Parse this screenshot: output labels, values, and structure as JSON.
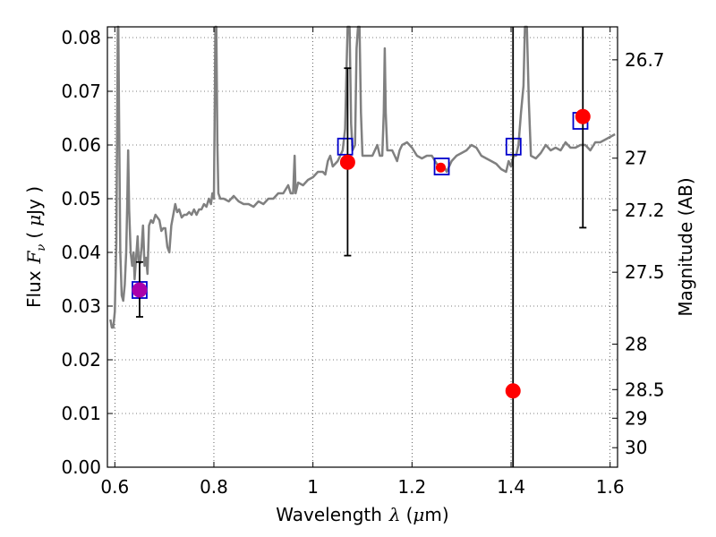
{
  "chart_data": {
    "type": "scatter",
    "xlabel": {
      "text": "Wavelength",
      "symbol": "λ",
      "unit_open": "(",
      "unit_mu": "μ",
      "unit_rest": "m)"
    },
    "ylabel": {
      "text": "Flux",
      "symbol": "F",
      "subscript": "ν",
      "unit_open": "(",
      "unit_mu": "μ",
      "unit_rest": "Jy )"
    },
    "y2label": "Magnitude (AB)",
    "xlim": [
      0.585,
      1.615
    ],
    "ylim": [
      0.0,
      0.082
    ],
    "grid": true,
    "x_ticks": [
      {
        "value": 0.6,
        "label": "0.6"
      },
      {
        "value": 0.8,
        "label": "0.8"
      },
      {
        "value": 1.0,
        "label": "1"
      },
      {
        "value": 1.2,
        "label": "1.2"
      },
      {
        "value": 1.4,
        "label": "1.4"
      },
      {
        "value": 1.6,
        "label": "1.6"
      }
    ],
    "y_ticks": [
      {
        "value": 0.0,
        "label": "0.00"
      },
      {
        "value": 0.01,
        "label": "0.01"
      },
      {
        "value": 0.02,
        "label": "0.02"
      },
      {
        "value": 0.03,
        "label": "0.03"
      },
      {
        "value": 0.04,
        "label": "0.04"
      },
      {
        "value": 0.05,
        "label": "0.05"
      },
      {
        "value": 0.06,
        "label": "0.06"
      },
      {
        "value": 0.07,
        "label": "0.07"
      },
      {
        "value": 0.08,
        "label": "0.08"
      }
    ],
    "y2_ticks": [
      {
        "value": 26.7,
        "label": "26.7"
      },
      {
        "value": 27.0,
        "label": "27"
      },
      {
        "value": 27.2,
        "label": "27.2"
      },
      {
        "value": 27.5,
        "label": "27.5"
      },
      {
        "value": 28.0,
        "label": "28"
      },
      {
        "value": 28.5,
        "label": "28.5"
      },
      {
        "value": 29.0,
        "label": "29"
      },
      {
        "value": 30.0,
        "label": "30"
      }
    ],
    "series": [
      {
        "kind": "line",
        "color": "#808080",
        "points": [
          [
            0.591,
            0.0275
          ],
          [
            0.594,
            0.026
          ],
          [
            0.597,
            0.026
          ],
          [
            0.6,
            0.029
          ],
          [
            0.603,
            0.042
          ],
          [
            0.605,
            0.068
          ],
          [
            0.606,
            0.082
          ],
          [
            0.607,
            0.082
          ],
          [
            0.609,
            0.06
          ],
          [
            0.611,
            0.04
          ],
          [
            0.614,
            0.032
          ],
          [
            0.617,
            0.031
          ],
          [
            0.62,
            0.034
          ],
          [
            0.623,
            0.04
          ],
          [
            0.625,
            0.0485
          ],
          [
            0.627,
            0.059
          ],
          [
            0.629,
            0.048
          ],
          [
            0.632,
            0.04
          ],
          [
            0.635,
            0.0375
          ],
          [
            0.638,
            0.04
          ],
          [
            0.64,
            0.035
          ],
          [
            0.643,
            0.039
          ],
          [
            0.646,
            0.043
          ],
          [
            0.648,
            0.0385
          ],
          [
            0.651,
            0.038
          ],
          [
            0.654,
            0.041
          ],
          [
            0.657,
            0.045
          ],
          [
            0.66,
            0.0375
          ],
          [
            0.663,
            0.039
          ],
          [
            0.666,
            0.036
          ],
          [
            0.669,
            0.045
          ],
          [
            0.673,
            0.046
          ],
          [
            0.677,
            0.0455
          ],
          [
            0.682,
            0.047
          ],
          [
            0.686,
            0.0465
          ],
          [
            0.69,
            0.046
          ],
          [
            0.694,
            0.044
          ],
          [
            0.698,
            0.0445
          ],
          [
            0.702,
            0.0445
          ],
          [
            0.706,
            0.041
          ],
          [
            0.71,
            0.04
          ],
          [
            0.714,
            0.045
          ],
          [
            0.718,
            0.047
          ],
          [
            0.722,
            0.049
          ],
          [
            0.726,
            0.0475
          ],
          [
            0.73,
            0.048
          ],
          [
            0.735,
            0.0465
          ],
          [
            0.74,
            0.047
          ],
          [
            0.745,
            0.047
          ],
          [
            0.75,
            0.0475
          ],
          [
            0.755,
            0.047
          ],
          [
            0.76,
            0.048
          ],
          [
            0.765,
            0.047
          ],
          [
            0.77,
            0.048
          ],
          [
            0.775,
            0.048
          ],
          [
            0.78,
            0.049
          ],
          [
            0.785,
            0.0485
          ],
          [
            0.79,
            0.05
          ],
          [
            0.794,
            0.049
          ],
          [
            0.797,
            0.051
          ],
          [
            0.8,
            0.05
          ],
          [
            0.802,
            0.07
          ],
          [
            0.803,
            0.082
          ],
          [
            0.805,
            0.082
          ],
          [
            0.807,
            0.06
          ],
          [
            0.809,
            0.051
          ],
          [
            0.813,
            0.05
          ],
          [
            0.82,
            0.05
          ],
          [
            0.83,
            0.0495
          ],
          [
            0.84,
            0.0505
          ],
          [
            0.85,
            0.0495
          ],
          [
            0.86,
            0.049
          ],
          [
            0.87,
            0.049
          ],
          [
            0.88,
            0.0485
          ],
          [
            0.89,
            0.0495
          ],
          [
            0.9,
            0.049
          ],
          [
            0.91,
            0.05
          ],
          [
            0.92,
            0.05
          ],
          [
            0.93,
            0.051
          ],
          [
            0.94,
            0.051
          ],
          [
            0.95,
            0.0525
          ],
          [
            0.955,
            0.051
          ],
          [
            0.96,
            0.051
          ],
          [
            0.963,
            0.058
          ],
          [
            0.965,
            0.051
          ],
          [
            0.97,
            0.053
          ],
          [
            0.98,
            0.0525
          ],
          [
            0.99,
            0.0535
          ],
          [
            1.0,
            0.054
          ],
          [
            1.01,
            0.055
          ],
          [
            1.02,
            0.055
          ],
          [
            1.025,
            0.0545
          ],
          [
            1.03,
            0.057
          ],
          [
            1.035,
            0.058
          ],
          [
            1.04,
            0.056
          ],
          [
            1.05,
            0.057
          ],
          [
            1.06,
            0.059
          ],
          [
            1.065,
            0.063
          ],
          [
            1.068,
            0.075
          ],
          [
            1.07,
            0.082
          ],
          [
            1.074,
            0.082
          ],
          [
            1.077,
            0.064
          ],
          [
            1.08,
            0.059
          ],
          [
            1.085,
            0.06
          ],
          [
            1.088,
            0.078
          ],
          [
            1.091,
            0.082
          ],
          [
            1.094,
            0.082
          ],
          [
            1.097,
            0.066
          ],
          [
            1.1,
            0.058
          ],
          [
            1.11,
            0.058
          ],
          [
            1.12,
            0.058
          ],
          [
            1.13,
            0.06
          ],
          [
            1.135,
            0.058
          ],
          [
            1.14,
            0.058
          ],
          [
            1.143,
            0.066
          ],
          [
            1.145,
            0.078
          ],
          [
            1.147,
            0.066
          ],
          [
            1.15,
            0.059
          ],
          [
            1.16,
            0.059
          ],
          [
            1.165,
            0.058
          ],
          [
            1.17,
            0.057
          ],
          [
            1.175,
            0.059
          ],
          [
            1.18,
            0.06
          ],
          [
            1.19,
            0.0605
          ],
          [
            1.2,
            0.0595
          ],
          [
            1.21,
            0.058
          ],
          [
            1.22,
            0.0575
          ],
          [
            1.23,
            0.058
          ],
          [
            1.24,
            0.058
          ],
          [
            1.25,
            0.0565
          ],
          [
            1.26,
            0.0555
          ],
          [
            1.265,
            0.056
          ],
          [
            1.27,
            0.055
          ],
          [
            1.275,
            0.056
          ],
          [
            1.28,
            0.057
          ],
          [
            1.29,
            0.058
          ],
          [
            1.3,
            0.0585
          ],
          [
            1.31,
            0.059
          ],
          [
            1.32,
            0.06
          ],
          [
            1.33,
            0.0595
          ],
          [
            1.34,
            0.058
          ],
          [
            1.35,
            0.0575
          ],
          [
            1.36,
            0.057
          ],
          [
            1.37,
            0.0565
          ],
          [
            1.38,
            0.0555
          ],
          [
            1.39,
            0.055
          ],
          [
            1.395,
            0.057
          ],
          [
            1.4,
            0.056
          ],
          [
            1.405,
            0.058
          ],
          [
            1.41,
            0.058
          ],
          [
            1.415,
            0.06
          ],
          [
            1.42,
            0.066
          ],
          [
            1.425,
            0.071
          ],
          [
            1.428,
            0.082
          ],
          [
            1.432,
            0.082
          ],
          [
            1.436,
            0.068
          ],
          [
            1.44,
            0.058
          ],
          [
            1.45,
            0.0575
          ],
          [
            1.46,
            0.0585
          ],
          [
            1.47,
            0.06
          ],
          [
            1.48,
            0.059
          ],
          [
            1.49,
            0.0595
          ],
          [
            1.5,
            0.059
          ],
          [
            1.51,
            0.0605
          ],
          [
            1.52,
            0.0595
          ],
          [
            1.53,
            0.0595
          ],
          [
            1.54,
            0.06
          ],
          [
            1.55,
            0.06
          ],
          [
            1.56,
            0.059
          ],
          [
            1.57,
            0.0605
          ],
          [
            1.58,
            0.0605
          ],
          [
            1.59,
            0.061
          ],
          [
            1.6,
            0.0615
          ],
          [
            1.61,
            0.062
          ]
        ]
      },
      {
        "kind": "model_photometry",
        "color": "#0000cc",
        "marker": "open-square",
        "points": [
          {
            "x": 0.65,
            "y": 0.033
          },
          {
            "x": 1.065,
            "y": 0.0597
          },
          {
            "x": 1.26,
            "y": 0.056
          },
          {
            "x": 1.405,
            "y": 0.0597
          },
          {
            "x": 1.54,
            "y": 0.0645
          }
        ]
      },
      {
        "kind": "observed_photometry",
        "color": "#ff0000",
        "marker": "filled-circle",
        "points": [
          {
            "x": 0.65,
            "y": 0.033,
            "yerr_low": 0.028,
            "yerr_high": 0.0382,
            "color": "#aa00aa"
          },
          {
            "x": 1.07,
            "y": 0.0568,
            "yerr_low": 0.0394,
            "yerr_high": 0.0743
          },
          {
            "x": 1.258,
            "y": 0.0558
          },
          {
            "x": 1.404,
            "y": 0.0142,
            "yerr_low": 0.0,
            "yerr_high": 0.082
          },
          {
            "x": 1.545,
            "y": 0.0653,
            "yerr_low": 0.0446,
            "yerr_high": 0.082
          }
        ]
      }
    ]
  }
}
